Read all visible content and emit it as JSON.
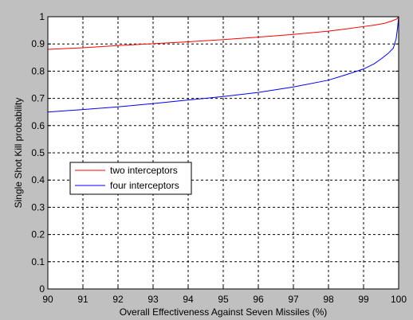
{
  "chart_data": {
    "type": "line",
    "title": "",
    "xlabel": "Overall Effectiveness Against Seven Missiles (%)",
    "ylabel": "Single Shot Kill probability",
    "xlim": [
      90,
      100
    ],
    "ylim": [
      0,
      1
    ],
    "xticks": [
      90,
      91,
      92,
      93,
      94,
      95,
      96,
      97,
      98,
      99,
      100
    ],
    "yticks": [
      0,
      0.1,
      0.2,
      0.3,
      0.4,
      0.5,
      0.6,
      0.7,
      0.8,
      0.9,
      1
    ],
    "ytick_labels": [
      "0",
      "0.1",
      "0.2",
      "0.3",
      "0.4",
      "0.5",
      "0.6",
      "0.7",
      "0.8",
      "0.9",
      "1"
    ],
    "grid": true,
    "legend_position": "middle-left",
    "series": [
      {
        "name": "two interceptors",
        "color": "#ff0000",
        "x": [
          90,
          91,
          92,
          93,
          94,
          95,
          96,
          97,
          98,
          98.5,
          99,
          99.3,
          99.6,
          99.8,
          99.95,
          100
        ],
        "y": [
          0.88,
          0.886,
          0.894,
          0.901,
          0.908,
          0.916,
          0.925,
          0.935,
          0.947,
          0.955,
          0.964,
          0.969,
          0.976,
          0.984,
          0.992,
          1.0
        ]
      },
      {
        "name": "four interceptors",
        "color": "#0000ff",
        "x": [
          90,
          91,
          92,
          93,
          94,
          95,
          96,
          97,
          98,
          98.5,
          99,
          99.3,
          99.5,
          99.7,
          99.85,
          99.93,
          99.97,
          100
        ],
        "y": [
          0.65,
          0.659,
          0.669,
          0.681,
          0.694,
          0.707,
          0.722,
          0.742,
          0.767,
          0.787,
          0.808,
          0.827,
          0.845,
          0.865,
          0.885,
          0.92,
          0.96,
          1.0
        ]
      }
    ]
  }
}
